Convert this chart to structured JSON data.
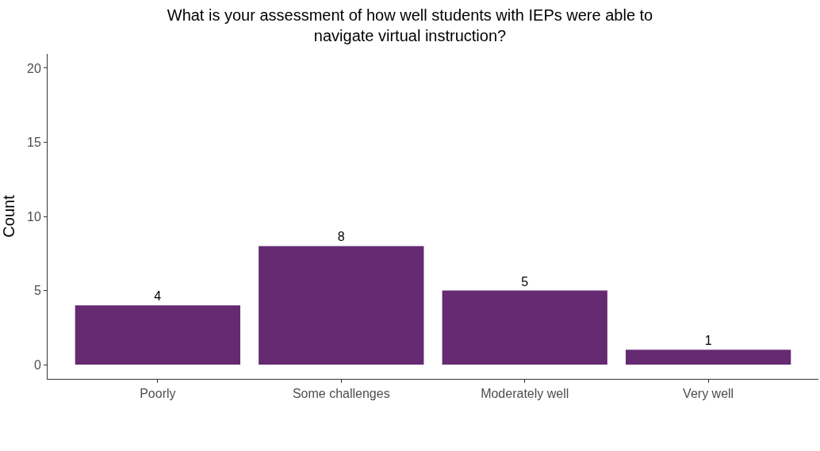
{
  "chart_data": {
    "type": "bar",
    "title": "What is your assessment of how well students with IEPs were able to navigate virtual instruction?",
    "ylabel": "Count",
    "categories": [
      "Poorly",
      "Some challenges",
      "Moderately well",
      "Very well"
    ],
    "values": [
      4,
      8,
      5,
      1
    ],
    "color": "#652a72",
    "ylim": [
      -0.96,
      20.96
    ],
    "yticks": [
      0,
      5,
      10,
      15,
      20
    ],
    "legend": false,
    "data_labels": true
  }
}
